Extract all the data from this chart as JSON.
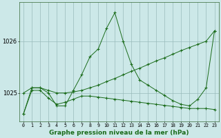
{
  "xlabel": "Graphe pression niveau de la mer (hPa)",
  "background_color": "#cce8e8",
  "plot_bg_color": "#cce8e8",
  "line_color": "#1a6b1a",
  "grid_color": "#99bbbb",
  "x_ticks": [
    0,
    1,
    2,
    3,
    4,
    5,
    6,
    7,
    8,
    9,
    10,
    11,
    12,
    13,
    14,
    15,
    16,
    17,
    18,
    19,
    20,
    21,
    22,
    23
  ],
  "ylim": [
    1024.45,
    1026.75
  ],
  "yticks": [
    1025,
    1026
  ],
  "series": [
    [
      1024.6,
      1025.1,
      1025.1,
      1025.0,
      1024.75,
      1024.75,
      1025.05,
      1025.35,
      1025.7,
      1025.85,
      1026.25,
      1026.55,
      1026.0,
      1025.55,
      1025.25,
      1025.15,
      1025.05,
      1024.95,
      1024.85,
      1024.78,
      1024.75,
      1024.88,
      1025.1,
      1026.2
    ],
    [
      1025.0,
      1025.1,
      1025.1,
      1025.05,
      1025.0,
      1025.0,
      1025.02,
      1025.05,
      1025.1,
      1025.15,
      1025.22,
      1025.28,
      1025.35,
      1025.42,
      1025.48,
      1025.55,
      1025.62,
      1025.68,
      1025.75,
      1025.82,
      1025.88,
      1025.94,
      1026.0,
      1026.2
    ],
    [
      1024.6,
      1025.05,
      1025.05,
      1024.9,
      1024.78,
      1024.82,
      1024.88,
      1024.94,
      1024.94,
      1024.92,
      1024.9,
      1024.88,
      1024.86,
      1024.84,
      1024.82,
      1024.8,
      1024.78,
      1024.76,
      1024.74,
      1024.72,
      1024.7,
      1024.7,
      1024.7,
      1024.68
    ]
  ]
}
